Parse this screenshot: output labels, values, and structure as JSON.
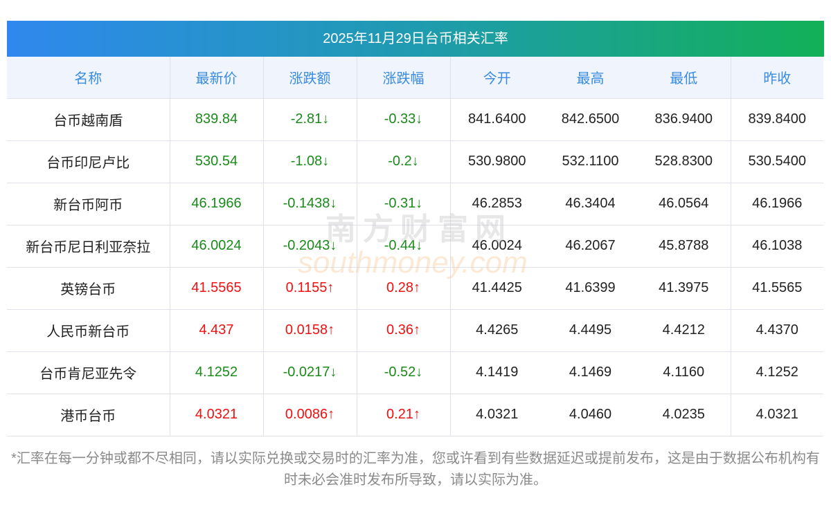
{
  "title": "2025年11月29日台币相关汇率",
  "headers": [
    "名称",
    "最新价",
    "涨跌额",
    "涨跌幅",
    "今开",
    "最高",
    "最低",
    "昨收"
  ],
  "rows": [
    [
      "台币越南盾",
      "839.84",
      "-2.81↓",
      "-0.33↓",
      "841.6400",
      "842.6500",
      "836.9400",
      "839.8400",
      "down"
    ],
    [
      "台币印尼卢比",
      "530.54",
      "-1.08↓",
      "-0.2↓",
      "530.9800",
      "532.1100",
      "528.8300",
      "530.5400",
      "down"
    ],
    [
      "新台币阿币",
      "46.1966",
      "-0.1438↓",
      "-0.31↓",
      "46.2853",
      "46.3404",
      "46.0564",
      "46.1966",
      "down"
    ],
    [
      "新台币尼日利亚奈拉",
      "46.0024",
      "-0.2043↓",
      "-0.44↓",
      "46.0024",
      "46.2067",
      "45.8788",
      "46.1038",
      "down"
    ],
    [
      "英镑台币",
      "41.5565",
      "0.1155↑",
      "0.28↑",
      "41.4425",
      "41.6399",
      "41.3975",
      "41.5565",
      "up"
    ],
    [
      "人民币新台币",
      "4.437",
      "0.0158↑",
      "0.36↑",
      "4.4265",
      "4.4495",
      "4.4212",
      "4.4370",
      "up"
    ],
    [
      "台币肯尼亚先令",
      "4.1252",
      "-0.0217↓",
      "-0.52↓",
      "4.1419",
      "4.1469",
      "4.1160",
      "4.1252",
      "down"
    ],
    [
      "港币台币",
      "4.0321",
      "0.0086↑",
      "0.21↑",
      "4.0321",
      "4.0460",
      "4.0235",
      "4.0321",
      "up"
    ]
  ],
  "watermark": {
    "cn": "南方财富网",
    "en": "southmoney.com"
  },
  "note": "*汇率在每一分钟或都不尽相同，请以实际兑换或交易时的汇率为准，您或许看到有些数据延迟或提前发布，这是由于数据公布机构有时未必会准时发布所导致，请以实际为准。",
  "colors": {
    "up": "#f01010",
    "down": "#1a8a1a",
    "header": "#3a8be0"
  }
}
